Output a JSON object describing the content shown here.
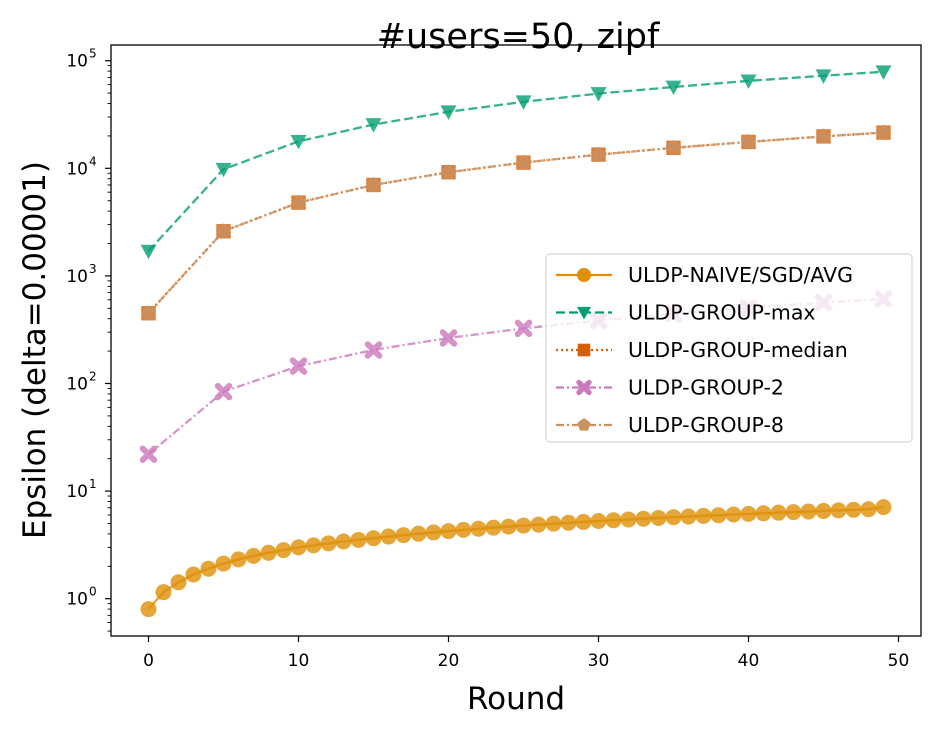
{
  "chart_data": {
    "type": "line",
    "title": "#users=50, zipf",
    "xlabel": "Round",
    "ylabel": "Epsilon (delta=0.00001)",
    "xlim": [
      -2.5,
      51.5
    ],
    "xticks": [
      0,
      10,
      20,
      30,
      40,
      50
    ],
    "yscale": "log",
    "ylim": [
      0.45,
      140000
    ],
    "yticks": [
      {
        "value": 1,
        "exp": "0"
      },
      {
        "value": 10,
        "exp": "1"
      },
      {
        "value": 100,
        "exp": "2"
      },
      {
        "value": 1000,
        "exp": "3"
      },
      {
        "value": 10000,
        "exp": "4"
      },
      {
        "value": 100000,
        "exp": "5"
      }
    ],
    "ytick_base": "10",
    "grid": false,
    "legend_position": "center-right",
    "series": [
      {
        "name": "ULDP-NAIVE/SGD/AVG",
        "color": "#de8f05",
        "linestyle": "solid",
        "marker": "circle",
        "x": [
          0,
          1,
          2,
          3,
          4,
          5,
          6,
          7,
          8,
          9,
          10,
          11,
          12,
          13,
          14,
          15,
          16,
          17,
          18,
          19,
          20,
          21,
          22,
          23,
          24,
          25,
          26,
          27,
          28,
          29,
          30,
          31,
          32,
          33,
          34,
          35,
          36,
          37,
          38,
          39,
          40,
          41,
          42,
          43,
          44,
          45,
          46,
          47,
          48,
          49
        ],
        "y": [
          0.8,
          1.15,
          1.42,
          1.68,
          1.9,
          2.12,
          2.32,
          2.5,
          2.67,
          2.83,
          3.0,
          3.13,
          3.27,
          3.4,
          3.52,
          3.65,
          3.78,
          3.9,
          4.02,
          4.13,
          4.25,
          4.36,
          4.47,
          4.58,
          4.68,
          4.78,
          4.88,
          4.98,
          5.08,
          5.17,
          5.27,
          5.36,
          5.45,
          5.54,
          5.63,
          5.72,
          5.8,
          5.89,
          5.97,
          6.06,
          6.14,
          6.22,
          6.3,
          6.38,
          6.46,
          6.54,
          6.62,
          6.7,
          6.78,
          7.1
        ]
      },
      {
        "name": "ULDP-GROUP-max",
        "color": "#029e73",
        "linestyle": "dashed",
        "marker": "triangle-down",
        "x": [
          0,
          5,
          10,
          15,
          20,
          25,
          30,
          35,
          40,
          45,
          49
        ],
        "y": [
          1700,
          9800,
          17800,
          25500,
          33500,
          41500,
          49500,
          57000,
          65000,
          72500,
          79000
        ]
      },
      {
        "name": "ULDP-GROUP-median",
        "color": "#d55e00",
        "linestyle": "dotted",
        "marker": "square",
        "x": [
          0,
          5,
          10,
          15,
          20,
          25,
          30,
          35,
          40,
          45,
          49
        ],
        "y": [
          450,
          2600,
          4800,
          7000,
          9200,
          11300,
          13400,
          15500,
          17600,
          19800,
          21500
        ]
      },
      {
        "name": "ULDP-GROUP-2",
        "color": "#cc78bc",
        "linestyle": "dashdot",
        "marker": "x-cross",
        "x": [
          0,
          5,
          10,
          15,
          20,
          25,
          30,
          35,
          40,
          45,
          49
        ],
        "y": [
          22,
          84,
          145,
          205,
          265,
          325,
          385,
          445,
          505,
          565,
          610
        ]
      },
      {
        "name": "ULDP-GROUP-8",
        "color": "#ca9161",
        "linestyle": "dashdot",
        "marker": "pentagon",
        "x": [
          0,
          5,
          10,
          15,
          20,
          25,
          30,
          35,
          40,
          45,
          49
        ],
        "y": [
          450,
          2600,
          4800,
          7000,
          9200,
          11300,
          13400,
          15500,
          17600,
          19800,
          21500
        ]
      }
    ]
  }
}
